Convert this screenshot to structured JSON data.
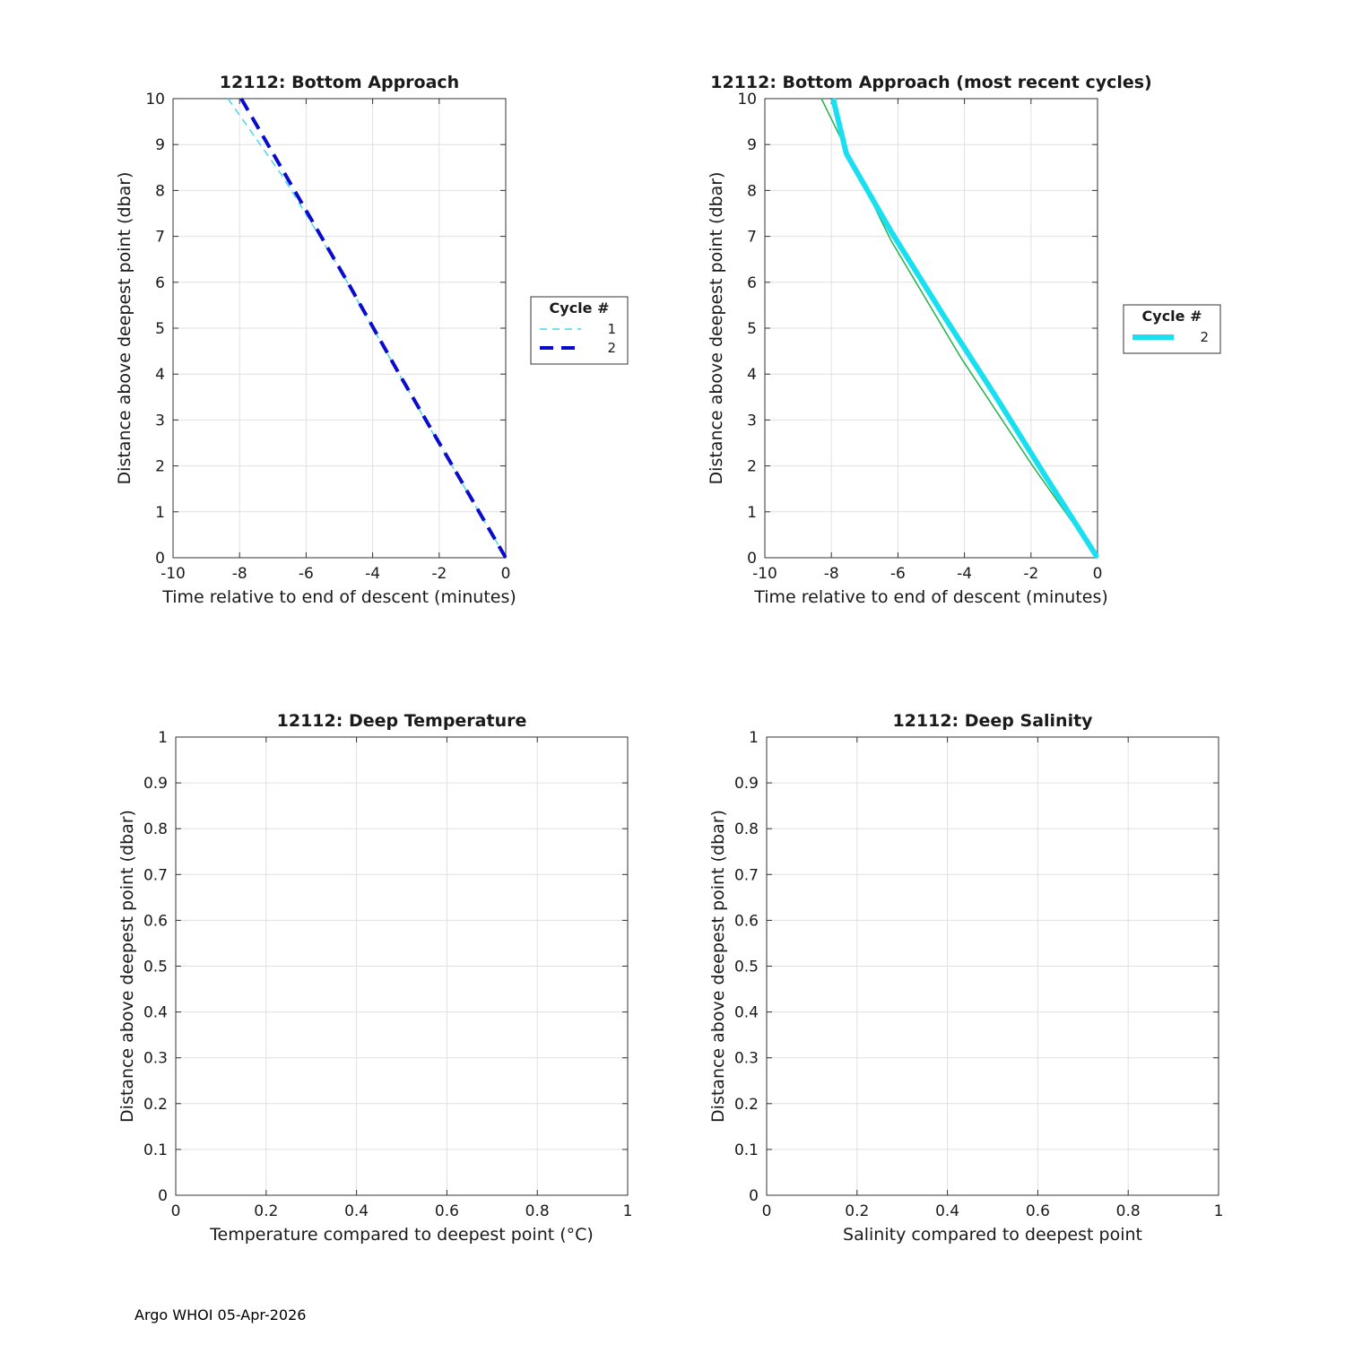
{
  "page": {
    "footer": "Argo WHOI 05-Apr-2026",
    "background": "#ffffff",
    "axis_color": "#333333",
    "grid_color": "#e0e0e0"
  },
  "chart_data": [
    {
      "type": "line",
      "name": "bottom-approach",
      "title": "12112: Bottom Approach",
      "xlabel": "Time relative to end of descent (minutes)",
      "ylabel": "Distance above deepest point (dbar)",
      "xlim": [
        -10,
        0
      ],
      "ylim": [
        0,
        10
      ],
      "xticks": [
        -10,
        -8,
        -6,
        -4,
        -2,
        0
      ],
      "yticks": [
        0,
        1,
        2,
        3,
        4,
        5,
        6,
        7,
        8,
        9,
        10
      ],
      "grid": true,
      "legend": {
        "title": "Cycle #",
        "position": "right-outside"
      },
      "series": [
        {
          "name": "1",
          "color": "#45d8e8",
          "width": 1.5,
          "dash": "8 6",
          "x": [
            -8.35,
            -6.7,
            -5.0,
            -3.6,
            -2.3,
            -1.05,
            0
          ],
          "y": [
            10,
            8.3,
            6.3,
            4.5,
            2.85,
            1.3,
            0
          ]
        },
        {
          "name": "2",
          "color": "#0b0bcc",
          "width": 4,
          "dash": "15 9",
          "x": [
            -7.95,
            -6.35,
            -4.75,
            -3.2,
            -1.6,
            0
          ],
          "y": [
            10,
            8,
            6,
            4,
            2,
            0
          ]
        }
      ]
    },
    {
      "type": "line",
      "name": "bottom-approach-recent",
      "title": "12112: Bottom Approach (most recent cycles)",
      "xlabel": "Time relative to end of descent (minutes)",
      "ylabel": "Distance above deepest point (dbar)",
      "xlim": [
        -10,
        0
      ],
      "ylim": [
        0,
        10
      ],
      "xticks": [
        -10,
        -8,
        -6,
        -4,
        -2,
        0
      ],
      "yticks": [
        0,
        1,
        2,
        3,
        4,
        5,
        6,
        7,
        8,
        9,
        10
      ],
      "grid": true,
      "legend": {
        "title": "Cycle #",
        "position": "right-outside"
      },
      "series": [
        {
          "name": "",
          "color": "#22b14c",
          "width": 1.5,
          "dash": "",
          "x": [
            -8.3,
            -6.2,
            -4.1,
            -1.95,
            0
          ],
          "y": [
            10,
            6.9,
            4.35,
            2.0,
            0
          ]
        },
        {
          "name": "2",
          "color": "#19dff0",
          "width": 6,
          "dash": "",
          "x": [
            -7.95,
            -7.55,
            -6.2,
            -4.65,
            -3.05,
            -1.5,
            0
          ],
          "y": [
            10,
            8.8,
            7.1,
            5.3,
            3.5,
            1.7,
            0
          ]
        }
      ]
    },
    {
      "type": "line",
      "name": "deep-temperature",
      "title": "12112: Deep Temperature",
      "xlabel": "Temperature compared to deepest point (°C)",
      "ylabel": "Distance above deepest point (dbar)",
      "xlim": [
        0,
        1
      ],
      "ylim": [
        0,
        1
      ],
      "xticks": [
        0,
        0.2,
        0.4,
        0.6,
        0.8,
        1
      ],
      "yticks": [
        0,
        0.1,
        0.2,
        0.3,
        0.4,
        0.5,
        0.6,
        0.7,
        0.8,
        0.9,
        1
      ],
      "grid": true,
      "legend": null,
      "series": []
    },
    {
      "type": "line",
      "name": "deep-salinity",
      "title": "12112: Deep Salinity",
      "xlabel": "Salinity compared to deepest point",
      "ylabel": "Distance above deepest point (dbar)",
      "xlim": [
        0,
        1
      ],
      "ylim": [
        0,
        1
      ],
      "xticks": [
        0,
        0.2,
        0.4,
        0.6,
        0.8,
        1
      ],
      "yticks": [
        0,
        0.1,
        0.2,
        0.3,
        0.4,
        0.5,
        0.6,
        0.7,
        0.8,
        0.9,
        1
      ],
      "grid": true,
      "legend": null,
      "series": []
    }
  ]
}
